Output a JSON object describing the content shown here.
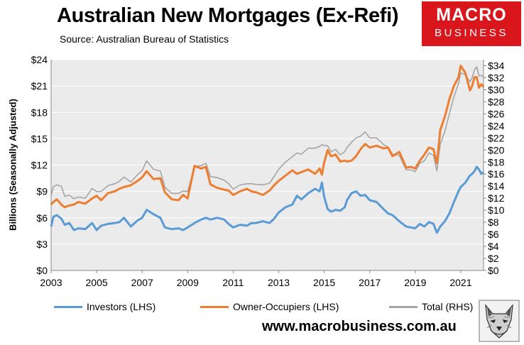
{
  "header": {
    "title": "Australian New Mortgages (Ex-Refi)",
    "source": "Source: Australian Bureau of Statistics"
  },
  "logo": {
    "line1": "MACRO",
    "line2": "BUSINESS",
    "color": "#d8161c"
  },
  "footer": {
    "url": "www.macrobusiness.com.au"
  },
  "chart_data": {
    "type": "line",
    "title": "Australian New Mortgages (Ex-Refi)",
    "ylabel": "Billions (Seasonally Adjusted)",
    "xlabel": "",
    "xlim": [
      2003,
      2022
    ],
    "ylim_left": [
      0,
      24
    ],
    "ylim_right": [
      0,
      35
    ],
    "x_ticks": [
      "2003",
      "2005",
      "2007",
      "2009",
      "2011",
      "2013",
      "2015",
      "2017",
      "2019",
      "2021"
    ],
    "y_ticks_left": [
      "$0",
      "$3",
      "$6",
      "$9",
      "$12",
      "$15",
      "$18",
      "$21",
      "$24"
    ],
    "y_ticks_right": [
      "$0",
      "$2",
      "$4",
      "$6",
      "$8",
      "$10",
      "$12",
      "$14",
      "$16",
      "$18",
      "$20",
      "$22",
      "$24",
      "$26",
      "$28",
      "$30",
      "$32",
      "$34"
    ],
    "plot_background": "#ebebeb",
    "gridlines": true,
    "legend_position": "bottom",
    "series": [
      {
        "name": "Investors (LHS)",
        "axis": "left",
        "color": "#5b9bd5",
        "x": [
          2003.0,
          2003.1,
          2003.25,
          2003.45,
          2003.6,
          2003.8,
          2004.0,
          2004.2,
          2004.5,
          2004.8,
          2005.0,
          2005.2,
          2005.5,
          2005.8,
          2006.0,
          2006.2,
          2006.5,
          2006.8,
          2007.0,
          2007.2,
          2007.5,
          2007.8,
          2008.0,
          2008.3,
          2008.6,
          2008.8,
          2009.0,
          2009.3,
          2009.6,
          2009.8,
          2010.0,
          2010.3,
          2010.6,
          2010.8,
          2011.0,
          2011.3,
          2011.6,
          2011.8,
          2012.0,
          2012.3,
          2012.6,
          2012.8,
          2013.0,
          2013.3,
          2013.6,
          2013.8,
          2014.0,
          2014.3,
          2014.6,
          2014.8,
          2014.9,
          2015.0,
          2015.15,
          2015.3,
          2015.5,
          2015.7,
          2015.9,
          2016.0,
          2016.2,
          2016.4,
          2016.6,
          2016.8,
          2017.0,
          2017.3,
          2017.6,
          2017.8,
          2018.0,
          2018.3,
          2018.6,
          2018.8,
          2019.0,
          2019.2,
          2019.4,
          2019.6,
          2019.8,
          2019.95,
          2020.1,
          2020.3,
          2020.5,
          2020.7,
          2020.9,
          2021.0,
          2021.2,
          2021.4,
          2021.5,
          2021.6,
          2021.7,
          2021.8,
          2021.9,
          2022.0
        ],
        "values": [
          5.0,
          6.1,
          6.3,
          5.9,
          5.2,
          5.4,
          4.6,
          4.8,
          4.7,
          5.4,
          4.6,
          5.1,
          5.3,
          5.4,
          5.5,
          6.0,
          5.0,
          5.7,
          6.0,
          6.9,
          6.4,
          6.0,
          4.9,
          4.7,
          4.8,
          4.6,
          4.9,
          5.4,
          5.8,
          6.0,
          5.8,
          6.0,
          5.8,
          5.3,
          4.9,
          5.2,
          5.1,
          5.4,
          5.4,
          5.6,
          5.4,
          5.9,
          6.6,
          7.2,
          7.5,
          8.5,
          8.1,
          8.8,
          9.3,
          9.0,
          10.0,
          8.4,
          7.0,
          6.7,
          6.9,
          6.8,
          7.2,
          8.0,
          8.8,
          9.0,
          8.5,
          8.6,
          8.0,
          7.8,
          7.0,
          6.5,
          6.3,
          5.6,
          5.0,
          4.9,
          4.8,
          5.3,
          5.0,
          5.5,
          5.3,
          4.3,
          5.0,
          5.6,
          6.5,
          7.8,
          9.0,
          9.5,
          10.0,
          10.8,
          11.0,
          11.3,
          11.8,
          11.5,
          11.0,
          11.2
        ]
      },
      {
        "name": "Owner-Occupiers (LHS)",
        "axis": "left",
        "color": "#ed7d31",
        "x": [
          2003.0,
          2003.1,
          2003.25,
          2003.45,
          2003.6,
          2003.8,
          2004.0,
          2004.2,
          2004.5,
          2004.8,
          2005.0,
          2005.2,
          2005.5,
          2005.8,
          2006.0,
          2006.2,
          2006.5,
          2006.8,
          2007.0,
          2007.2,
          2007.5,
          2007.8,
          2008.0,
          2008.3,
          2008.6,
          2008.8,
          2009.0,
          2009.3,
          2009.6,
          2009.8,
          2010.0,
          2010.3,
          2010.6,
          2010.8,
          2011.0,
          2011.3,
          2011.6,
          2011.8,
          2012.0,
          2012.3,
          2012.6,
          2012.8,
          2013.0,
          2013.3,
          2013.6,
          2013.8,
          2014.0,
          2014.3,
          2014.6,
          2014.8,
          2014.9,
          2015.0,
          2015.15,
          2015.3,
          2015.5,
          2015.7,
          2015.9,
          2016.0,
          2016.2,
          2016.4,
          2016.6,
          2016.8,
          2017.0,
          2017.3,
          2017.6,
          2017.8,
          2018.0,
          2018.3,
          2018.6,
          2018.8,
          2019.0,
          2019.2,
          2019.4,
          2019.6,
          2019.8,
          2019.95,
          2020.1,
          2020.3,
          2020.5,
          2020.7,
          2020.9,
          2021.0,
          2021.2,
          2021.4,
          2021.5,
          2021.6,
          2021.7,
          2021.8,
          2021.9,
          2022.0
        ],
        "values": [
          7.5,
          7.8,
          8.1,
          7.5,
          7.2,
          7.4,
          7.5,
          7.8,
          7.6,
          8.2,
          8.5,
          8.0,
          8.8,
          9.0,
          9.3,
          9.5,
          9.7,
          10.2,
          10.6,
          11.3,
          10.4,
          10.5,
          8.9,
          8.1,
          8.0,
          8.6,
          8.2,
          11.9,
          11.6,
          11.8,
          9.8,
          9.4,
          9.2,
          9.1,
          8.6,
          9.0,
          9.3,
          9.0,
          8.9,
          8.6,
          9.1,
          9.7,
          10.2,
          10.8,
          11.4,
          11.0,
          11.2,
          11.5,
          11.0,
          11.6,
          10.9,
          12.3,
          13.7,
          13.0,
          13.2,
          12.4,
          12.5,
          12.4,
          12.5,
          13.0,
          13.8,
          14.4,
          14.0,
          14.2,
          13.9,
          14.0,
          13.0,
          13.5,
          11.7,
          11.8,
          11.6,
          12.5,
          13.2,
          14.0,
          13.8,
          12.2,
          16.0,
          17.5,
          19.5,
          21.0,
          22.0,
          23.3,
          22.5,
          20.5,
          21.0,
          22.0,
          22.0,
          20.8,
          21.2,
          20.9
        ]
      },
      {
        "name": "Total (RHS)",
        "axis": "right",
        "color": "#a5a5a5",
        "x": [
          2003.0,
          2003.1,
          2003.25,
          2003.45,
          2003.6,
          2003.8,
          2004.0,
          2004.2,
          2004.5,
          2004.8,
          2005.0,
          2005.2,
          2005.5,
          2005.8,
          2006.0,
          2006.2,
          2006.5,
          2006.8,
          2007.0,
          2007.2,
          2007.5,
          2007.8,
          2008.0,
          2008.3,
          2008.6,
          2008.8,
          2009.0,
          2009.3,
          2009.6,
          2009.8,
          2010.0,
          2010.3,
          2010.6,
          2010.8,
          2011.0,
          2011.3,
          2011.6,
          2011.8,
          2012.0,
          2012.3,
          2012.6,
          2012.8,
          2013.0,
          2013.3,
          2013.6,
          2013.8,
          2014.0,
          2014.3,
          2014.6,
          2014.8,
          2014.9,
          2015.0,
          2015.15,
          2015.3,
          2015.5,
          2015.7,
          2015.9,
          2016.0,
          2016.2,
          2016.4,
          2016.6,
          2016.8,
          2017.0,
          2017.3,
          2017.6,
          2017.8,
          2018.0,
          2018.3,
          2018.6,
          2018.8,
          2019.0,
          2019.2,
          2019.4,
          2019.6,
          2019.8,
          2019.95,
          2020.1,
          2020.3,
          2020.5,
          2020.7,
          2020.9,
          2021.0,
          2021.2,
          2021.4,
          2021.5,
          2021.6,
          2021.7,
          2021.8,
          2021.9,
          2022.0
        ],
        "values": [
          12.4,
          13.9,
          14.2,
          14.0,
          12.3,
          12.5,
          11.9,
          12.2,
          12.0,
          13.6,
          13.1,
          13.1,
          14.1,
          14.4,
          14.8,
          15.5,
          14.7,
          15.9,
          16.6,
          18.2,
          16.8,
          16.5,
          13.8,
          12.8,
          12.8,
          13.2,
          13.1,
          17.3,
          17.4,
          17.8,
          15.6,
          15.4,
          15.0,
          14.4,
          13.5,
          14.2,
          14.4,
          14.4,
          14.3,
          14.2,
          14.5,
          15.6,
          16.8,
          18.0,
          18.9,
          19.5,
          19.3,
          20.3,
          20.3,
          20.6,
          20.9,
          20.7,
          20.7,
          19.7,
          20.1,
          19.2,
          19.7,
          20.4,
          21.3,
          22.0,
          22.3,
          23.0,
          22.0,
          22.0,
          20.9,
          20.5,
          19.3,
          19.1,
          16.7,
          16.7,
          16.4,
          17.8,
          18.2,
          19.5,
          19.1,
          16.5,
          21.0,
          23.1,
          26.0,
          28.8,
          31.0,
          32.8,
          32.5,
          31.3,
          32.0,
          33.3,
          33.8,
          32.3,
          32.4,
          32.1
        ]
      }
    ]
  }
}
